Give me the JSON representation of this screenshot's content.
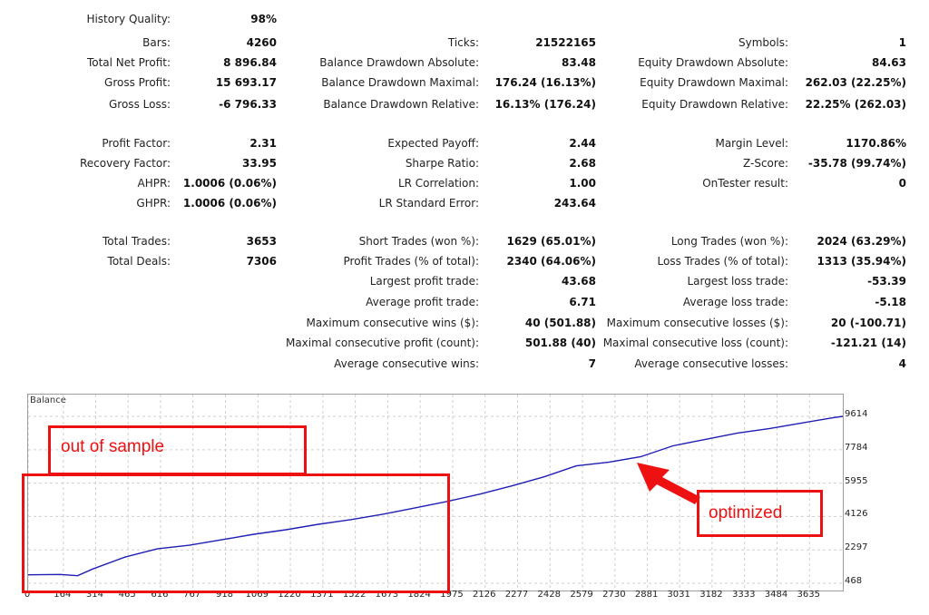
{
  "stats": {
    "col1": [
      {
        "label": "History Quality:",
        "value": "98%"
      },
      {
        "label": "Bars:",
        "value": "4260"
      },
      {
        "label": "Total Net Profit:",
        "value": "8 896.84"
      },
      {
        "label": "Gross Profit:",
        "value": "15 693.17"
      },
      {
        "label": "Gross Loss:",
        "value": "-6 796.33"
      },
      {
        "label": "Profit Factor:",
        "value": "2.31"
      },
      {
        "label": "Recovery Factor:",
        "value": "33.95"
      },
      {
        "label": "AHPR:",
        "value": "1.0006 (0.06%)"
      },
      {
        "label": "GHPR:",
        "value": "1.0006 (0.06%)"
      },
      {
        "label": "Total Trades:",
        "value": "3653"
      },
      {
        "label": "Total Deals:",
        "value": "7306"
      }
    ],
    "col2": [
      {
        "label": "Ticks:",
        "value": "21522165"
      },
      {
        "label": "Balance Drawdown Absolute:",
        "value": "83.48"
      },
      {
        "label": "Balance Drawdown Maximal:",
        "value": "176.24 (16.13%)"
      },
      {
        "label": "Balance Drawdown Relative:",
        "value": "16.13% (176.24)"
      },
      {
        "label": "Expected Payoff:",
        "value": "2.44"
      },
      {
        "label": "Sharpe Ratio:",
        "value": "2.68"
      },
      {
        "label": "LR Correlation:",
        "value": "1.00"
      },
      {
        "label": "LR Standard Error:",
        "value": "243.64"
      },
      {
        "label": "Short Trades (won %):",
        "value": "1629 (65.01%)"
      },
      {
        "label": "Profit Trades (% of total):",
        "value": "2340 (64.06%)"
      },
      {
        "label": "Largest profit trade:",
        "value": "43.68"
      },
      {
        "label": "Average profit trade:",
        "value": "6.71"
      },
      {
        "label": "Maximum consecutive wins ($):",
        "value": "40 (501.88)"
      },
      {
        "label": "Maximal consecutive profit (count):",
        "value": "501.88 (40)"
      },
      {
        "label": "Average consecutive wins:",
        "value": "7"
      }
    ],
    "col3": [
      {
        "label": "Symbols:",
        "value": "1"
      },
      {
        "label": "Equity Drawdown Absolute:",
        "value": "84.63"
      },
      {
        "label": "Equity Drawdown Maximal:",
        "value": "262.03 (22.25%)"
      },
      {
        "label": "Equity Drawdown Relative:",
        "value": "22.25% (262.03)"
      },
      {
        "label": "Margin Level:",
        "value": "1170.86%"
      },
      {
        "label": "Z-Score:",
        "value": "-35.78 (99.74%)"
      },
      {
        "label": "OnTester result:",
        "value": "0"
      },
      {
        "label": "Long Trades (won %):",
        "value": "2024 (63.29%)"
      },
      {
        "label": "Loss Trades (% of total):",
        "value": "1313 (35.94%)"
      },
      {
        "label": "Largest loss trade:",
        "value": "-53.39"
      },
      {
        "label": "Average loss trade:",
        "value": "-5.18"
      },
      {
        "label": "Maximum consecutive losses ($):",
        "value": "20 (-100.71)"
      },
      {
        "label": "Maximal consecutive loss (count):",
        "value": "-121.21 (14)"
      },
      {
        "label": "Average consecutive losses:",
        "value": "4"
      }
    ]
  },
  "chart_data": {
    "type": "line",
    "title": "Balance",
    "line_color": "#1f1fb4",
    "y_ticks": [
      "9614",
      "7784",
      "5955",
      "4126",
      "2297",
      "468"
    ],
    "ylim": [
      468,
      9614
    ],
    "x_ticks": [
      "0",
      "164",
      "314",
      "465",
      "616",
      "767",
      "918",
      "1069",
      "1220",
      "1371",
      "1522",
      "1673",
      "1824",
      "1975",
      "2126",
      "2277",
      "2428",
      "2579",
      "2730",
      "2881",
      "3031",
      "3182",
      "3333",
      "3484",
      "3635"
    ],
    "xlim": [
      0,
      3790
    ],
    "grid": true,
    "x": [
      0,
      150,
      230,
      300,
      450,
      600,
      750,
      900,
      1050,
      1200,
      1350,
      1500,
      1650,
      1800,
      1950,
      2100,
      2250,
      2400,
      2550,
      2700,
      2850,
      3000,
      3150,
      3300,
      3450,
      3600,
      3750,
      3790
    ],
    "y": [
      930,
      950,
      880,
      1250,
      1900,
      2350,
      2550,
      2850,
      3150,
      3400,
      3700,
      3950,
      4250,
      4600,
      4950,
      5350,
      5800,
      6300,
      6900,
      7100,
      7400,
      8000,
      8350,
      8700,
      8950,
      9250,
      9550,
      9614
    ]
  },
  "annotations": {
    "out_of_sample": "out of sample",
    "optimized": "optimized",
    "color": "#ee1111"
  }
}
